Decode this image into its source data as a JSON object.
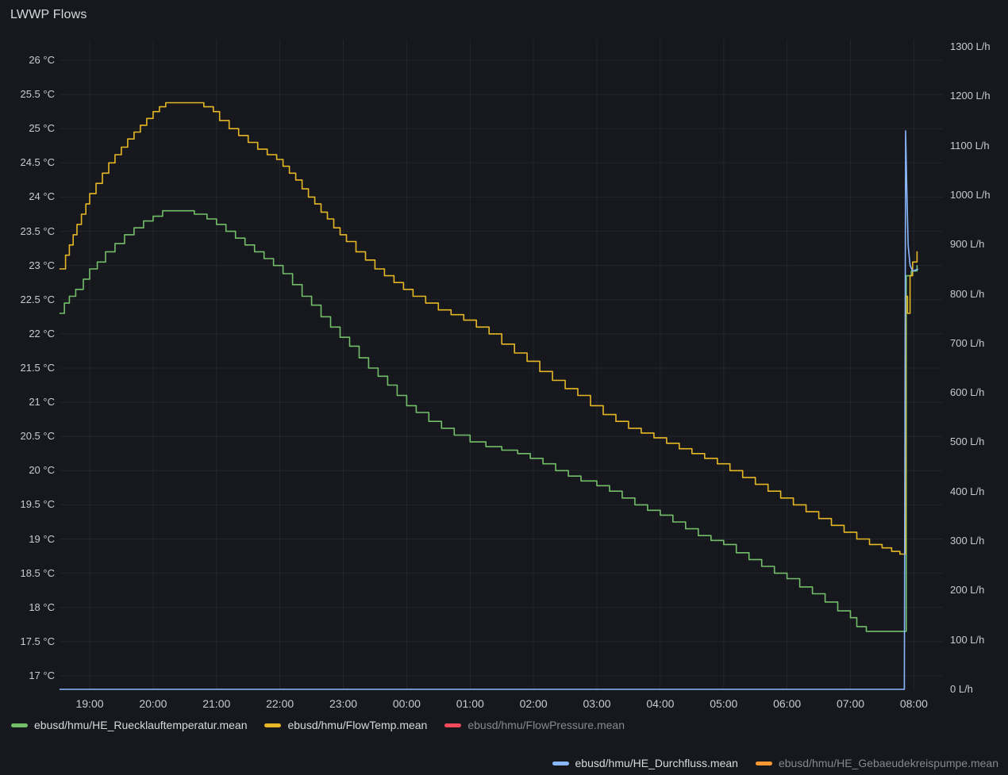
{
  "panel": {
    "title": "LWWP Flows"
  },
  "colors": {
    "background": "#16181d",
    "grid": "rgba(200,210,225,0.07)",
    "axis_text": "#c7ccd1",
    "legend_text": "#d8d9da",
    "legend_text_dim": "#85898f"
  },
  "legend": {
    "rows": [
      [
        {
          "label": "ebusd/hmu/HE_Ruecklauftemperatur.mean",
          "color": "#73bf69",
          "dim": false
        },
        {
          "label": "ebusd/hmu/FlowTemp.mean",
          "color": "#e6b725",
          "dim": false
        },
        {
          "label": "ebusd/hmu/FlowPressure.mean",
          "color": "#f2495c",
          "dim": true
        }
      ],
      [
        {
          "label": "ebusd/hmu/HE_Durchfluss.mean",
          "color": "#8ab8ff",
          "dim": false
        },
        {
          "label": "ebusd/hmu/HE_Gebaeudekreispumpe.mean",
          "color": "#ff9830",
          "dim": true
        }
      ]
    ]
  },
  "chart_data": {
    "type": "line",
    "title": "LWWP Flows",
    "grid": true,
    "legend_position": "bottom",
    "time_encoding": "decimal hours; values >= 24 are after midnight of the next day",
    "x_axis": {
      "tick_labels": [
        "19:00",
        "20:00",
        "21:00",
        "22:00",
        "23:00",
        "00:00",
        "01:00",
        "02:00",
        "03:00",
        "04:00",
        "05:00",
        "06:00",
        "07:00",
        "08:00"
      ],
      "tick_hours": [
        19,
        20,
        21,
        22,
        23,
        24,
        25,
        26,
        27,
        28,
        29,
        30,
        31,
        32
      ],
      "range_hours": [
        18.53,
        32.45
      ]
    },
    "y_left": {
      "unit": "°C",
      "tick_labels": [
        "26 °C",
        "25.5 °C",
        "25 °C",
        "24.5 °C",
        "24 °C",
        "23.5 °C",
        "23 °C",
        "22.5 °C",
        "22 °C",
        "21.5 °C",
        "21 °C",
        "20.5 °C",
        "20 °C",
        "19.5 °C",
        "19 °C",
        "18.5 °C",
        "18 °C",
        "17.5 °C",
        "17 °C"
      ],
      "tick_values": [
        26,
        25.5,
        25,
        24.5,
        24,
        23.5,
        23,
        22.5,
        22,
        21.5,
        21,
        20.5,
        20,
        19.5,
        19,
        18.5,
        18,
        17.5,
        17
      ],
      "range": [
        17,
        26.3
      ]
    },
    "y_right": {
      "unit": "L/h",
      "tick_labels": [
        "1300 L/h",
        "1200 L/h",
        "1100 L/h",
        "1000 L/h",
        "900 L/h",
        "800 L/h",
        "700 L/h",
        "600 L/h",
        "500 L/h",
        "400 L/h",
        "300 L/h",
        "200 L/h",
        "100 L/h",
        "0 L/h"
      ],
      "tick_values": [
        1300,
        1200,
        1100,
        1000,
        900,
        800,
        700,
        600,
        500,
        400,
        300,
        200,
        100,
        0
      ],
      "range": [
        0,
        1300
      ]
    },
    "series": [
      {
        "name": "ebusd/hmu/HE_Ruecklauftemperatur.mean",
        "color": "#73bf69",
        "axis": "left",
        "step": true,
        "visible": true,
        "points": [
          [
            18.53,
            22.3
          ],
          [
            18.6,
            22.45
          ],
          [
            18.68,
            22.55
          ],
          [
            18.78,
            22.65
          ],
          [
            18.9,
            22.8
          ],
          [
            19.0,
            22.95
          ],
          [
            19.12,
            23.05
          ],
          [
            19.25,
            23.2
          ],
          [
            19.4,
            23.32
          ],
          [
            19.55,
            23.45
          ],
          [
            19.7,
            23.55
          ],
          [
            19.85,
            23.65
          ],
          [
            20.0,
            23.72
          ],
          [
            20.15,
            23.8
          ],
          [
            20.5,
            23.8
          ],
          [
            20.65,
            23.75
          ],
          [
            20.85,
            23.68
          ],
          [
            21.0,
            23.6
          ],
          [
            21.15,
            23.5
          ],
          [
            21.3,
            23.4
          ],
          [
            21.45,
            23.3
          ],
          [
            21.6,
            23.2
          ],
          [
            21.75,
            23.1
          ],
          [
            21.9,
            23.0
          ],
          [
            22.05,
            22.88
          ],
          [
            22.2,
            22.72
          ],
          [
            22.35,
            22.55
          ],
          [
            22.5,
            22.42
          ],
          [
            22.65,
            22.25
          ],
          [
            22.8,
            22.1
          ],
          [
            22.95,
            21.95
          ],
          [
            23.1,
            21.82
          ],
          [
            23.25,
            21.65
          ],
          [
            23.4,
            21.5
          ],
          [
            23.55,
            21.38
          ],
          [
            23.7,
            21.25
          ],
          [
            23.85,
            21.1
          ],
          [
            24.0,
            20.95
          ],
          [
            24.15,
            20.85
          ],
          [
            24.35,
            20.72
          ],
          [
            24.55,
            20.62
          ],
          [
            24.75,
            20.52
          ],
          [
            25.0,
            20.42
          ],
          [
            25.25,
            20.35
          ],
          [
            25.5,
            20.3
          ],
          [
            25.75,
            20.25
          ],
          [
            25.95,
            20.18
          ],
          [
            26.15,
            20.1
          ],
          [
            26.35,
            20.0
          ],
          [
            26.55,
            19.92
          ],
          [
            26.75,
            19.85
          ],
          [
            27.0,
            19.78
          ],
          [
            27.2,
            19.7
          ],
          [
            27.4,
            19.6
          ],
          [
            27.6,
            19.5
          ],
          [
            27.8,
            19.42
          ],
          [
            28.0,
            19.35
          ],
          [
            28.2,
            19.25
          ],
          [
            28.4,
            19.15
          ],
          [
            28.6,
            19.05
          ],
          [
            28.8,
            18.98
          ],
          [
            29.0,
            18.92
          ],
          [
            29.2,
            18.8
          ],
          [
            29.4,
            18.7
          ],
          [
            29.6,
            18.6
          ],
          [
            29.8,
            18.5
          ],
          [
            30.0,
            18.42
          ],
          [
            30.2,
            18.3
          ],
          [
            30.4,
            18.2
          ],
          [
            30.6,
            18.08
          ],
          [
            30.8,
            17.95
          ],
          [
            31.0,
            17.85
          ],
          [
            31.1,
            17.72
          ],
          [
            31.25,
            17.65
          ],
          [
            31.88,
            22.85
          ],
          [
            31.96,
            22.92
          ],
          [
            32.05,
            23.0
          ]
        ]
      },
      {
        "name": "ebusd/hmu/FlowTemp.mean",
        "color": "#e6b725",
        "axis": "left",
        "step": true,
        "visible": true,
        "points": [
          [
            18.53,
            22.95
          ],
          [
            18.62,
            23.15
          ],
          [
            18.68,
            23.3
          ],
          [
            18.74,
            23.45
          ],
          [
            18.8,
            23.6
          ],
          [
            18.87,
            23.75
          ],
          [
            18.94,
            23.9
          ],
          [
            19.0,
            24.05
          ],
          [
            19.1,
            24.2
          ],
          [
            19.2,
            24.35
          ],
          [
            19.3,
            24.5
          ],
          [
            19.4,
            24.62
          ],
          [
            19.5,
            24.73
          ],
          [
            19.6,
            24.85
          ],
          [
            19.7,
            24.95
          ],
          [
            19.8,
            25.05
          ],
          [
            19.9,
            25.15
          ],
          [
            20.0,
            25.25
          ],
          [
            20.1,
            25.32
          ],
          [
            20.2,
            25.38
          ],
          [
            20.7,
            25.38
          ],
          [
            20.8,
            25.32
          ],
          [
            20.95,
            25.25
          ],
          [
            21.05,
            25.12
          ],
          [
            21.2,
            25.0
          ],
          [
            21.35,
            24.9
          ],
          [
            21.5,
            24.8
          ],
          [
            21.65,
            24.7
          ],
          [
            21.8,
            24.62
          ],
          [
            21.95,
            24.55
          ],
          [
            22.05,
            24.45
          ],
          [
            22.15,
            24.35
          ],
          [
            22.25,
            24.25
          ],
          [
            22.35,
            24.12
          ],
          [
            22.45,
            24.0
          ],
          [
            22.55,
            23.9
          ],
          [
            22.65,
            23.78
          ],
          [
            22.75,
            23.68
          ],
          [
            22.85,
            23.55
          ],
          [
            22.95,
            23.45
          ],
          [
            23.05,
            23.35
          ],
          [
            23.2,
            23.2
          ],
          [
            23.35,
            23.08
          ],
          [
            23.5,
            22.95
          ],
          [
            23.65,
            22.85
          ],
          [
            23.8,
            22.75
          ],
          [
            23.95,
            22.65
          ],
          [
            24.1,
            22.55
          ],
          [
            24.3,
            22.45
          ],
          [
            24.5,
            22.35
          ],
          [
            24.7,
            22.28
          ],
          [
            24.9,
            22.2
          ],
          [
            25.1,
            22.1
          ],
          [
            25.3,
            22.0
          ],
          [
            25.5,
            21.85
          ],
          [
            25.7,
            21.72
          ],
          [
            25.9,
            21.6
          ],
          [
            26.1,
            21.45
          ],
          [
            26.3,
            21.32
          ],
          [
            26.5,
            21.2
          ],
          [
            26.7,
            21.1
          ],
          [
            26.9,
            20.95
          ],
          [
            27.1,
            20.82
          ],
          [
            27.3,
            20.72
          ],
          [
            27.5,
            20.62
          ],
          [
            27.7,
            20.55
          ],
          [
            27.9,
            20.48
          ],
          [
            28.1,
            20.4
          ],
          [
            28.3,
            20.32
          ],
          [
            28.5,
            20.25
          ],
          [
            28.7,
            20.18
          ],
          [
            28.9,
            20.1
          ],
          [
            29.1,
            20.0
          ],
          [
            29.3,
            19.9
          ],
          [
            29.5,
            19.8
          ],
          [
            29.7,
            19.7
          ],
          [
            29.9,
            19.6
          ],
          [
            30.1,
            19.5
          ],
          [
            30.3,
            19.4
          ],
          [
            30.5,
            19.3
          ],
          [
            30.7,
            19.2
          ],
          [
            30.9,
            19.1
          ],
          [
            31.1,
            19.0
          ],
          [
            31.3,
            18.92
          ],
          [
            31.5,
            18.87
          ],
          [
            31.65,
            18.82
          ],
          [
            31.78,
            18.78
          ],
          [
            31.87,
            22.55
          ],
          [
            31.9,
            22.3
          ],
          [
            31.94,
            22.85
          ],
          [
            31.98,
            23.05
          ],
          [
            32.05,
            23.2
          ]
        ]
      },
      {
        "name": "ebusd/hmu/FlowPressure.mean",
        "color": "#f2495c",
        "axis": "right",
        "step": false,
        "visible": false,
        "points": []
      },
      {
        "name": "ebusd/hmu/HE_Durchfluss.mean",
        "color": "#8ab8ff",
        "axis": "right",
        "step": false,
        "visible": true,
        "points": [
          [
            18.53,
            0
          ],
          [
            31.85,
            0
          ],
          [
            31.87,
            1130
          ],
          [
            31.89,
            1005
          ],
          [
            31.91,
            898
          ],
          [
            31.94,
            858
          ],
          [
            31.98,
            846
          ],
          [
            32.06,
            850
          ]
        ]
      },
      {
        "name": "ebusd/hmu/HE_Gebaeudekreispumpe.mean",
        "color": "#ff9830",
        "axis": "right",
        "step": false,
        "visible": false,
        "points": []
      }
    ]
  }
}
